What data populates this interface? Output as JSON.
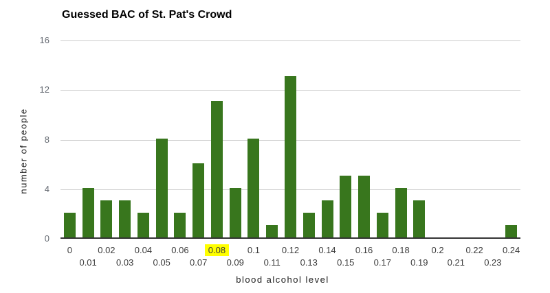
{
  "chart_data": {
    "type": "bar",
    "title": "Guessed BAC of St. Pat's Crowd",
    "xlabel": "blood alcohol level",
    "ylabel": "number of people",
    "categories": [
      "0",
      "0.01",
      "0.02",
      "0.03",
      "0.04",
      "0.05",
      "0.06",
      "0.07",
      "0.08",
      "0.09",
      "0.1",
      "0.11",
      "0.12",
      "0.13",
      "0.14",
      "0.15",
      "0.16",
      "0.17",
      "0.18",
      "0.19",
      "0.2",
      "0.21",
      "0.22",
      "0.23",
      "0.24"
    ],
    "values": [
      2,
      4,
      3,
      3,
      2,
      8,
      2,
      6,
      11,
      4,
      8,
      1,
      13,
      2,
      3,
      5,
      5,
      2,
      4,
      3,
      0,
      0,
      0,
      0,
      1
    ],
    "ylim": [
      0,
      16
    ],
    "yticks": [
      0,
      4,
      8,
      12,
      16
    ],
    "highlighted_category": "0.08",
    "grid": true,
    "legend_position": "none",
    "colors": {
      "bar": "#38761d",
      "highlight_background": "#ffff00",
      "gridline": "#cccccc",
      "axis_line": "#333333",
      "y_tick_text": "#666b73",
      "x_tick_text": "#3b3b3b",
      "title_text": "#000000",
      "axis_title_text": "#1a1a1a",
      "background": "#ffffff"
    }
  }
}
